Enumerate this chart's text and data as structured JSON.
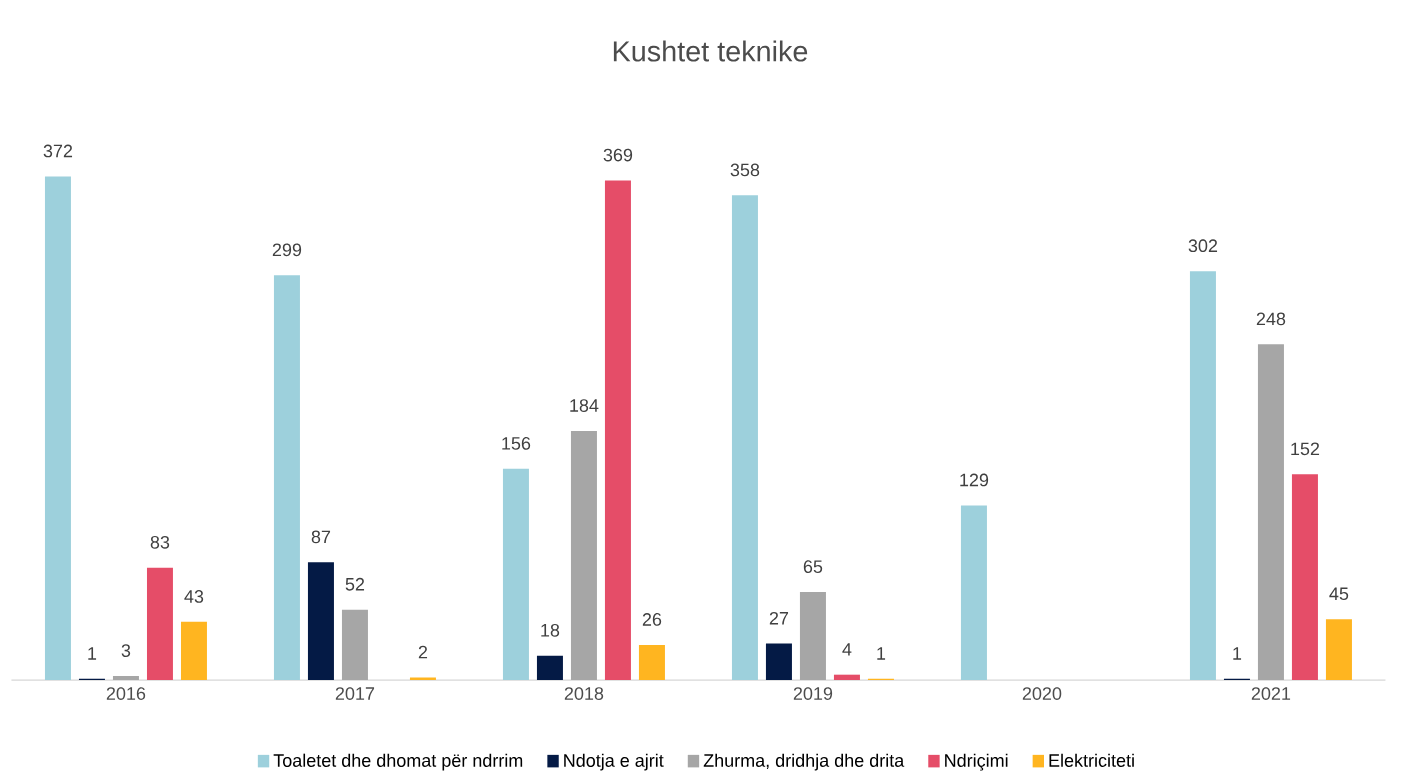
{
  "chart_data": {
    "type": "bar",
    "title": "Kushtet teknike",
    "categories": [
      "2016",
      "2017",
      "2018",
      "2019",
      "2020",
      "2021"
    ],
    "series": [
      {
        "name": "Toaletet dhe dhomat për ndrrim",
        "color": "#9dd0dc",
        "values": [
          372,
          299,
          156,
          358,
          129,
          302
        ]
      },
      {
        "name": "Ndotja e ajrit",
        "color": "#041a45",
        "values": [
          1,
          87,
          18,
          27,
          null,
          1
        ]
      },
      {
        "name": "Zhurma, dridhja dhe drita",
        "color": "#a6a6a6",
        "values": [
          3,
          52,
          184,
          65,
          null,
          248
        ]
      },
      {
        "name": "Ndriçimi",
        "color": "#e54d68",
        "values": [
          83,
          null,
          369,
          4,
          null,
          152
        ]
      },
      {
        "name": "Elektriciteti",
        "color": "#ffb520",
        "values": [
          43,
          2,
          26,
          1,
          null,
          45
        ]
      }
    ],
    "data_labels": true,
    "legend": "bottom"
  }
}
